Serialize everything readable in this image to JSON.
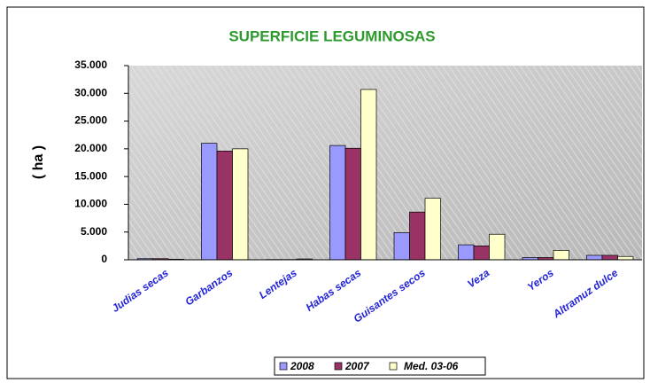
{
  "chart_data": {
    "type": "bar",
    "title": "SUPERFICIE LEGUMINOSAS",
    "y_label": "( ha )",
    "categories": [
      "Judias secas",
      "Garbanzos",
      "Lentejas",
      "Habas secas",
      "Guisantes secos",
      "Veza",
      "Yeros",
      "Altramuz dulce"
    ],
    "series": [
      {
        "name": "2008",
        "color": "#9999ff",
        "values": [
          200,
          21000,
          50,
          20600,
          4900,
          2700,
          400,
          800
        ]
      },
      {
        "name": "2007",
        "color": "#993366",
        "values": [
          200,
          19600,
          50,
          20100,
          8600,
          2500,
          400,
          800
        ]
      },
      {
        "name": "Med. 03-06",
        "color": "#ffffcc",
        "values": [
          100,
          20000,
          150,
          30700,
          11100,
          4600,
          1700,
          600
        ]
      }
    ],
    "ylim": [
      0,
      35000
    ],
    "yticks": [
      0,
      {
        "value": 5000,
        "label": "5.000"
      },
      {
        "value": 10000,
        "label": "10.000"
      },
      {
        "value": 15000,
        "label": "15.000"
      },
      {
        "value": 20000,
        "label": "20.000"
      },
      {
        "value": 25000,
        "label": "25.000"
      },
      {
        "value": 30000,
        "label": "30.000"
      },
      {
        "value": 35000,
        "label": "35.000"
      }
    ],
    "grid": false,
    "legend": "bottom"
  }
}
